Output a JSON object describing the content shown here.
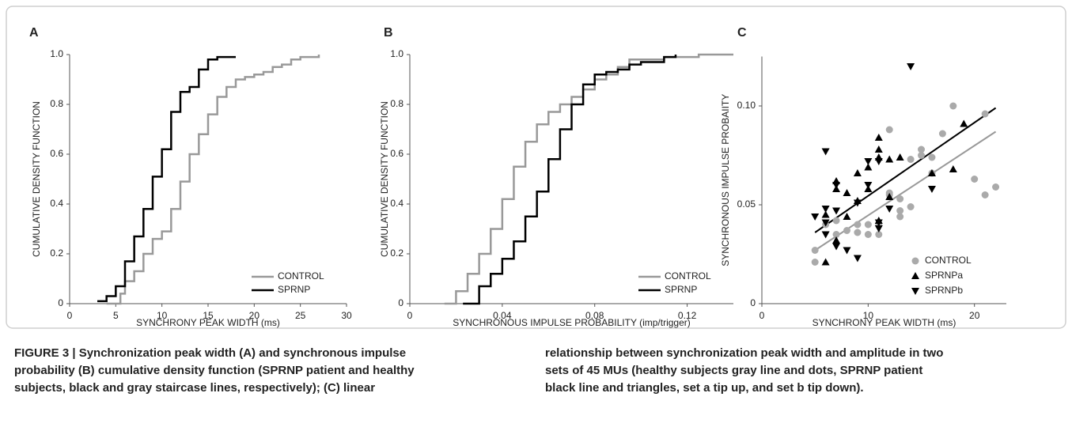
{
  "chart_data": [
    {
      "type": "step",
      "title": "A",
      "xlabel": "SYNCHRONY PEAK WIDTH (ms)",
      "ylabel": "CUMULATIVE DENSITY FUNCTION",
      "xlim": [
        0,
        30
      ],
      "ylim": [
        0,
        1
      ],
      "xticks": [
        0,
        5,
        10,
        15,
        20,
        25,
        30
      ],
      "yticks": [
        0,
        0.2,
        0.4,
        0.6,
        0.8,
        {
          "value": 1,
          "label": "1.0"
        }
      ],
      "legend": "lower right",
      "series": [
        {
          "name": "CONTROL",
          "color": "#999999",
          "x": [
            4,
            5.5,
            6,
            7,
            8,
            9,
            10,
            11,
            12,
            13,
            14,
            15,
            16,
            17,
            18,
            19,
            20,
            21,
            22,
            23,
            24,
            25,
            27
          ],
          "values": [
            0,
            0.04,
            0.09,
            0.13,
            0.2,
            0.26,
            0.29,
            0.38,
            0.49,
            0.6,
            0.68,
            0.76,
            0.83,
            0.87,
            0.9,
            0.91,
            0.92,
            0.93,
            0.95,
            0.96,
            0.98,
            0.99,
            1
          ]
        },
        {
          "name": "SPRNP",
          "color": "#000000",
          "x": [
            3,
            4,
            5,
            6,
            7,
            8,
            9,
            10,
            11,
            12,
            13,
            14,
            15,
            16,
            18
          ],
          "values": [
            0.01,
            0.03,
            0.07,
            0.17,
            0.27,
            0.38,
            0.51,
            0.62,
            0.77,
            0.85,
            0.87,
            0.94,
            0.98,
            0.99,
            0.99
          ]
        }
      ]
    },
    {
      "type": "step",
      "title": "B",
      "xlabel": "SYNCHRONOUS IMPULSE PROBABILITY (imp/trigger)",
      "ylabel": "CUMULATIVE DENSITY FUNCTION",
      "xlim": [
        0,
        0.14
      ],
      "ylim": [
        0,
        1
      ],
      "xticks": [
        0,
        0.04,
        0.08,
        0.12
      ],
      "yticks": [
        0,
        0.2,
        0.4,
        0.6,
        0.8,
        {
          "value": 1,
          "label": "1.0"
        }
      ],
      "legend": "lower right",
      "series": [
        {
          "name": "CONTROL",
          "color": "#999999",
          "x": [
            0.015,
            0.02,
            0.025,
            0.03,
            0.035,
            0.04,
            0.045,
            0.05,
            0.055,
            0.06,
            0.065,
            0.07,
            0.075,
            0.08,
            0.085,
            0.09,
            0.095,
            0.1,
            0.11,
            0.125,
            0.14
          ],
          "values": [
            0,
            0.05,
            0.12,
            0.2,
            0.3,
            0.42,
            0.55,
            0.65,
            0.72,
            0.77,
            0.8,
            0.83,
            0.86,
            0.9,
            0.92,
            0.95,
            0.98,
            0.98,
            0.99,
            1,
            1
          ]
        },
        {
          "name": "SPRNP",
          "color": "#000000",
          "x": [
            0.023,
            0.03,
            0.035,
            0.04,
            0.045,
            0.05,
            0.055,
            0.06,
            0.065,
            0.07,
            0.075,
            0.08,
            0.085,
            0.09,
            0.095,
            0.1,
            0.11,
            0.115
          ],
          "values": [
            0,
            0.07,
            0.12,
            0.18,
            0.25,
            0.35,
            0.45,
            0.58,
            0.7,
            0.8,
            0.88,
            0.92,
            0.93,
            0.94,
            0.96,
            0.97,
            0.99,
            1
          ]
        }
      ]
    },
    {
      "type": "scatter",
      "title": "C",
      "xlabel": "SYNCHRONY PEAK WIDTH (ms)",
      "ylabel": "SYNCHRONOUS IMPULSE PROBAIITY",
      "xlim": [
        0,
        23
      ],
      "ylim": [
        0,
        0.125
      ],
      "xticks": [
        0,
        10,
        20
      ],
      "yticks": [
        0,
        0.05,
        {
          "value": 0.1,
          "label": "0.10"
        }
      ],
      "legend": "lower right",
      "series": [
        {
          "name": "CONTROL",
          "color": "#aaaaaa",
          "marker": "circle",
          "x": [
            5,
            5,
            6,
            7,
            7,
            8,
            9,
            9,
            10,
            10,
            11,
            11,
            12,
            12,
            12,
            13,
            13,
            13,
            14,
            14,
            15,
            15,
            16,
            16,
            17,
            18,
            20,
            21,
            21,
            22
          ],
          "values": [
            0.027,
            0.021,
            0.04,
            0.042,
            0.035,
            0.037,
            0.036,
            0.04,
            0.04,
            0.035,
            0.035,
            0.04,
            0.088,
            0.056,
            0.055,
            0.053,
            0.047,
            0.044,
            0.049,
            0.073,
            0.078,
            0.075,
            0.074,
            0.066,
            0.086,
            0.1,
            0.063,
            0.055,
            0.096,
            0.059
          ]
        },
        {
          "name": "SPRNPa",
          "color": "#000000",
          "marker": "triangle-up",
          "x": [
            6,
            6,
            7,
            7,
            8,
            8,
            9,
            9,
            10,
            10,
            11,
            11,
            11,
            11,
            12,
            12,
            13,
            16,
            18,
            19,
            7
          ],
          "values": [
            0.021,
            0.045,
            0.058,
            0.062,
            0.056,
            0.044,
            0.052,
            0.066,
            0.069,
            0.058,
            0.084,
            0.078,
            0.074,
            0.042,
            0.054,
            0.073,
            0.074,
            0.066,
            0.068,
            0.091,
            0.032
          ]
        },
        {
          "name": "SPRNPb",
          "color": "#000000",
          "marker": "triangle-down",
          "x": [
            5,
            6,
            6,
            6,
            6,
            7,
            7,
            8,
            9,
            9,
            10,
            10,
            11,
            11,
            11,
            12,
            14,
            16,
            7
          ],
          "values": [
            0.044,
            0.077,
            0.048,
            0.041,
            0.035,
            0.06,
            0.029,
            0.027,
            0.023,
            0.051,
            0.06,
            0.072,
            0.072,
            0.041,
            0.038,
            0.048,
            0.12,
            0.058,
            0.047
          ]
        }
      ],
      "fit_lines": [
        {
          "color": "#999999",
          "x": [
            5,
            22
          ],
          "values": [
            0.027,
            0.087
          ]
        },
        {
          "color": "#000000",
          "x": [
            5,
            22
          ],
          "values": [
            0.036,
            0.099
          ]
        }
      ]
    }
  ],
  "caption": {
    "lines": [
      "FIGURE 3 | Synchronization peak width (A) and synchronous impulse",
      "probability (B) cumulative density function (SPRNP patient and healthy",
      "subjects, black and gray staircase lines, respectively); (C) linear",
      "relationship between synchronization peak width and amplitude in two",
      "sets of 45 MUs (healthy subjects gray line and dots, SPRNP patient",
      "black line and triangles, set a tip up, and set b tip down)."
    ]
  }
}
